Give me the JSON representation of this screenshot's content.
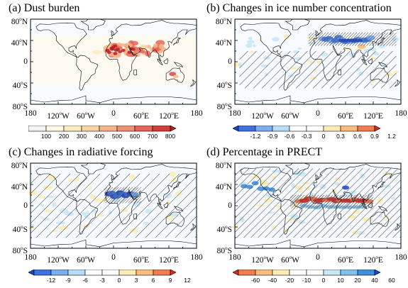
{
  "panels": [
    {
      "title": "(a)  Dust burden",
      "pattern": "dust",
      "colorbar": {
        "labels": [
          "100",
          "200",
          "300",
          "400",
          "500",
          "600",
          "700",
          "800"
        ],
        "colors": [
          "#f4f4f4",
          "#fdf8e4",
          "#fdebc0",
          "#f9d3a0",
          "#f4b487",
          "#ee9170",
          "#e6655a",
          "#d53e3b",
          "#b81c22"
        ],
        "arrows": "right"
      }
    },
    {
      "title": "(b)  Changes in ice number concentration",
      "pattern": "ice",
      "colorbar": {
        "labels": [
          "-1.2",
          "-0.9",
          "-0.6",
          "-0.3",
          "0",
          "0.3",
          "0.6",
          "0.9",
          "1.2"
        ],
        "colors": [
          "#1c46c8",
          "#3e72e0",
          "#79aef2",
          "#b7dcf8",
          "#ffffff",
          "#ffffff",
          "#fcecb4",
          "#f9bc7a",
          "#f17c4e",
          "#d32a2a"
        ],
        "arrows": "both"
      }
    },
    {
      "title": "(c)  Changes in radiative forcing",
      "pattern": "rad",
      "colorbar": {
        "labels": [
          "-12",
          "-9",
          "-6",
          "-3",
          "0",
          "3",
          "6",
          "9",
          "12"
        ],
        "colors": [
          "#1c46c8",
          "#3e72e0",
          "#79aef2",
          "#b7dcf8",
          "#ffffff",
          "#ffffff",
          "#fcecb4",
          "#f9bc7a",
          "#f17c4e",
          "#d32a2a"
        ],
        "arrows": "both"
      }
    },
    {
      "title": "(d)  Percentage in PRECT",
      "pattern": "prect",
      "colorbar": {
        "labels": [
          "-60",
          "-40",
          "-20",
          "-10",
          "0",
          "10",
          "20",
          "40",
          "60"
        ],
        "colors": [
          "#d32a2a",
          "#f17c4e",
          "#f9bc7a",
          "#fcecb4",
          "#ffffff",
          "#ffffff",
          "#c8e6f6",
          "#7fc1ec",
          "#3e8fdc",
          "#1c46c8"
        ],
        "arrows": "both"
      }
    }
  ],
  "axes": {
    "lat_labels": [
      {
        "deg": "80",
        "hem": "N"
      },
      {
        "deg": "40",
        "hem": "N"
      },
      {
        "deg": "0",
        "hem": ""
      },
      {
        "deg": "40",
        "hem": "S"
      },
      {
        "deg": "80",
        "hem": "S"
      }
    ],
    "lon_labels": [
      {
        "deg": "180",
        "hem": ""
      },
      {
        "deg": "120",
        "hem": "W"
      },
      {
        "deg": "60",
        "hem": "W"
      },
      {
        "deg": "0",
        "hem": ""
      },
      {
        "deg": "60",
        "hem": "E"
      },
      {
        "deg": "120",
        "hem": "E"
      },
      {
        "deg": "180",
        "hem": ""
      }
    ]
  },
  "colors": {
    "map_background": "#f7fbff",
    "coast": "#000000",
    "hatch": "#555555"
  }
}
